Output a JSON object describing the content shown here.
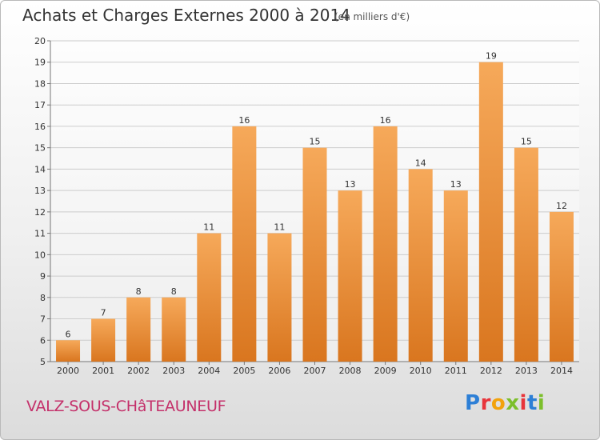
{
  "header": {
    "title": "Achats et Charges Externes 2000 à 2014",
    "subtitle": "(en milliers d'€)"
  },
  "footer": {
    "place": "VALZ-SOUS-CHâTEAUNEUF",
    "logo_letters": [
      {
        "ch": "P",
        "color": "#2d7fd6"
      },
      {
        "ch": "r",
        "color": "#e8343a"
      },
      {
        "ch": "o",
        "color": "#f2a20c"
      },
      {
        "ch": "x",
        "color": "#7cbf2b"
      },
      {
        "ch": "i",
        "color": "#e8343a"
      },
      {
        "ch": "t",
        "color": "#2d7fd6"
      },
      {
        "ch": "i",
        "color": "#7cbf2b"
      }
    ]
  },
  "colors": {
    "bar_top": "#f6a95a",
    "bar_bottom": "#d9761f",
    "grid": "#cccccc"
  },
  "chart_data": {
    "type": "bar",
    "categories": [
      "2000",
      "2001",
      "2002",
      "2003",
      "2004",
      "2005",
      "2006",
      "2007",
      "2008",
      "2009",
      "2010",
      "2011",
      "2012",
      "2013",
      "2014"
    ],
    "values": [
      6,
      7,
      8,
      8,
      11,
      16,
      11,
      15,
      13,
      16,
      14,
      13,
      19,
      15,
      12
    ],
    "title": "Achats et Charges Externes 2000 à 2014",
    "ylim": [
      5,
      20
    ],
    "yticks": [
      5,
      6,
      7,
      8,
      9,
      10,
      11,
      12,
      13,
      14,
      15,
      16,
      17,
      18,
      19,
      20
    ],
    "grid": true
  }
}
